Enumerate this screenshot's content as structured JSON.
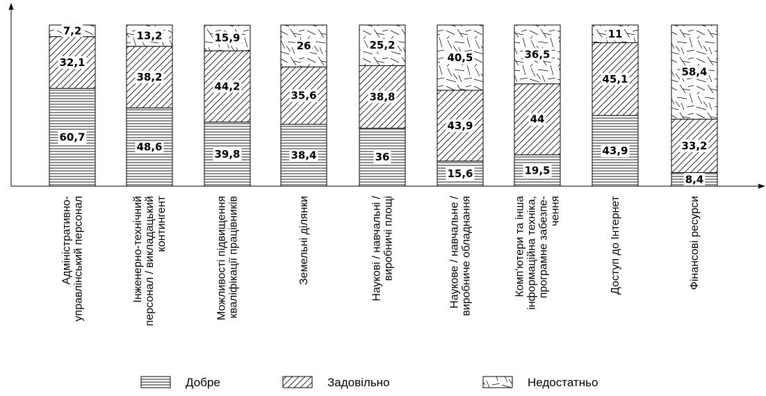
{
  "chart_data": {
    "type": "bar",
    "stacked": true,
    "percent_stacked": true,
    "title": "",
    "xlabel": "",
    "ylabel": "",
    "ylim": [
      0,
      100
    ],
    "grid": false,
    "legend_position": "bottom",
    "categories": [
      [
        "Адміністративно-",
        "управлінський персонал"
      ],
      [
        "Інженерно-технічний",
        "персонал / викладацький",
        "контингент"
      ],
      [
        "Можливості підвищення",
        "кваліфікації працівників"
      ],
      [
        "Земельні ділянки"
      ],
      [
        "Наукові / навчальні /",
        "виробничі площі"
      ],
      [
        "Наукове / навчальне /",
        "виробниче обладнання"
      ],
      [
        "Комп'ютери та інша",
        "інформаційна техніка,",
        "програмне забезпе-",
        "чення"
      ],
      [
        "Доступ до Інтернет"
      ],
      [
        "Фінансові ресурси"
      ]
    ],
    "series": [
      {
        "name": "Добре",
        "pattern": "horizontal-lines",
        "values": [
          60.7,
          48.6,
          39.8,
          38.4,
          36,
          15.6,
          19.5,
          43.9,
          8.4
        ],
        "labels": [
          "60,7",
          "48,6",
          "39,8",
          "38,4",
          "36",
          "15,6",
          "19,5",
          "43,9",
          "8,4"
        ]
      },
      {
        "name": "Задовільно",
        "pattern": "diagonal-lines",
        "values": [
          32.1,
          38.2,
          44.2,
          35.6,
          38.8,
          43.9,
          44,
          45.1,
          33.2
        ],
        "labels": [
          "32,1",
          "38,2",
          "44,2",
          "35,6",
          "38,8",
          "43,9",
          "44",
          "45,1",
          "33,2"
        ]
      },
      {
        "name": "Недостатньо",
        "pattern": "random-lines",
        "values": [
          7.2,
          13.2,
          15.9,
          26,
          25.2,
          40.5,
          36.5,
          11,
          58.4
        ],
        "labels": [
          "7,2",
          "13,2",
          "15,9",
          "26",
          "25,2",
          "40,5",
          "36,5",
          "11",
          "58,4"
        ]
      }
    ],
    "colors": {
      "stroke": "#000000",
      "background": "#ffffff"
    }
  }
}
